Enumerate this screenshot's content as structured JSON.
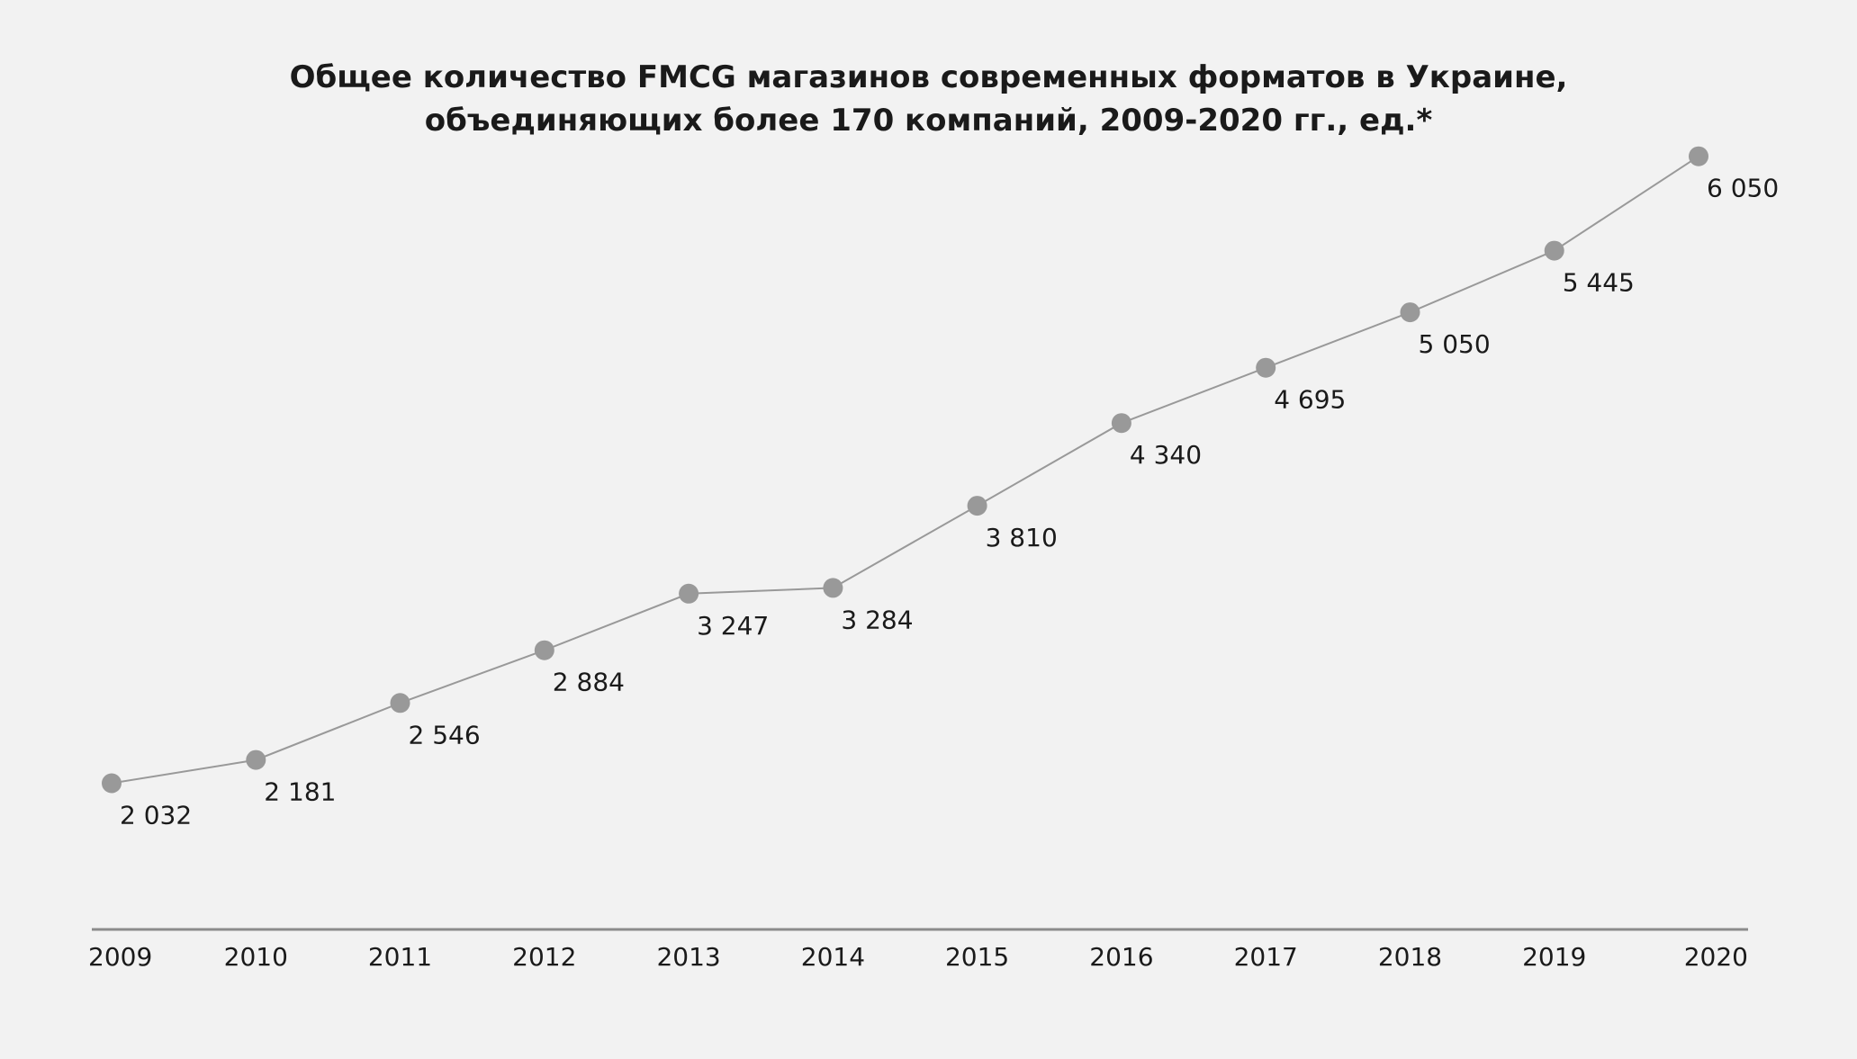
{
  "chart_data": {
    "type": "line",
    "title_lines": [
      "Общее количество FMCG магазинов современных форматов в Украине,",
      "объединяющих более 170 компаний, 2009-2020 гг., ед.*"
    ],
    "xlabel": "",
    "ylabel": "",
    "categories": [
      "2009",
      "2010",
      "2011",
      "2012",
      "2013",
      "2014",
      "2015",
      "2016",
      "2017",
      "2018",
      "2019",
      "2020"
    ],
    "series": [
      {
        "values": [
          2032,
          2181,
          2546,
          2884,
          3247,
          3284,
          3810,
          4340,
          4695,
          5050,
          5445,
          6050
        ],
        "labels": [
          "2 032",
          "2 181",
          "2 546",
          "2 884",
          "3 247",
          "3 284",
          "3 810",
          "4 340",
          "4 695",
          "5 050",
          "5 445",
          "6 050"
        ]
      }
    ],
    "grid": false,
    "y_axis_visible": false,
    "colors": {
      "line": "#999999",
      "marker": "#999999",
      "axis": "#8c8c8c",
      "text": "#1a1a1a",
      "background": "#f2f2f2"
    }
  }
}
